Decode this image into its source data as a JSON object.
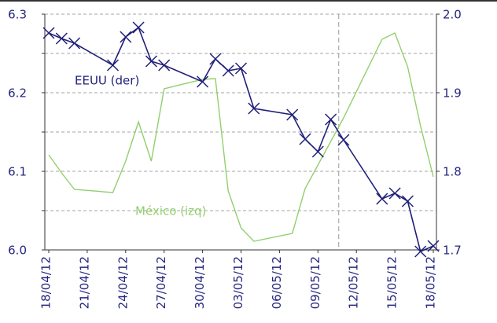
{
  "chart_data": {
    "type": "line",
    "x": [
      "18/04/12",
      "19/04/12",
      "20/04/12",
      "23/04/12",
      "24/04/12",
      "25/04/12",
      "26/04/12",
      "27/04/12",
      "30/04/12",
      "01/05/12",
      "02/05/12",
      "03/05/12",
      "04/05/12",
      "07/05/12",
      "08/05/12",
      "09/05/12",
      "10/05/12",
      "11/05/12",
      "14/05/12",
      "15/05/12",
      "16/05/12",
      "17/05/12",
      "18/05/12"
    ],
    "xlim": [
      "18/04/12",
      "18/05/12"
    ],
    "xticks": [
      "18/04/12",
      "21/04/12",
      "24/04/12",
      "27/04/12",
      "30/04/12",
      "03/05/12",
      "06/05/12",
      "09/05/12",
      "12/05/12",
      "15/05/12",
      "18/05/12"
    ],
    "series": [
      {
        "name": "EEUU (der)",
        "color": "#1f1f7a",
        "axis": "y2",
        "marker": "x",
        "values": [
          1.976,
          1.969,
          1.963,
          1.935,
          1.971,
          1.983,
          1.94,
          1.935,
          1.914,
          1.943,
          1.928,
          1.931,
          1.88,
          1.872,
          1.841,
          1.825,
          1.866,
          1.84,
          1.765,
          1.772,
          1.762,
          1.698,
          1.705
        ]
      },
      {
        "name": "México (izq)",
        "color": "#92cf6e",
        "values": [
          6.121,
          6.098,
          6.077,
          6.073,
          6.113,
          6.163,
          6.113,
          6.205,
          6.217,
          6.218,
          6.075,
          6.028,
          6.011,
          6.021,
          6.078,
          6.108,
          6.138,
          6.168,
          6.268,
          6.276,
          6.233,
          6.158,
          6.093
        ]
      }
    ],
    "ylim": [
      6.0,
      6.3
    ],
    "yticks": [
      {
        "value": 6.0,
        "label": "6.0"
      },
      {
        "value": 6.05,
        "label": "6.1"
      },
      {
        "value": 6.1,
        "label": "6.1"
      },
      {
        "value": 6.15,
        "label": "6.2"
      },
      {
        "value": 6.2,
        "label": "6.2"
      },
      {
        "value": 6.25,
        "label": "6.2"
      },
      {
        "value": 6.3,
        "label": "6.3"
      }
    ],
    "y2lim": [
      1.7,
      2.0
    ],
    "y2ticks": [
      {
        "value": 1.7,
        "label": "1.7"
      },
      {
        "value": 1.8,
        "label": "1.8"
      },
      {
        "value": 1.9,
        "label": "1.9"
      },
      {
        "value": 2.0,
        "label": "2.0"
      }
    ],
    "grid": true
  }
}
